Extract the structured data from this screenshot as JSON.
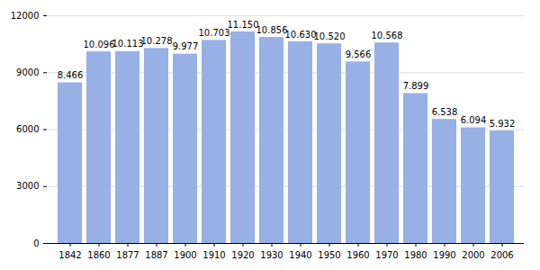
{
  "chart_data": {
    "type": "bar",
    "categories": [
      "1842",
      "1860",
      "1877",
      "1887",
      "1900",
      "1910",
      "1920",
      "1930",
      "1940",
      "1950",
      "1960",
      "1970",
      "1980",
      "1990",
      "2000",
      "2006"
    ],
    "values": [
      8466,
      10096,
      10113,
      10278,
      9977,
      10703,
      11150,
      10856,
      10630,
      10520,
      9566,
      10568,
      7899,
      6538,
      6094,
      5932
    ],
    "value_labels": [
      "8.466",
      "10.096",
      "10.113",
      "10.278",
      "9.977",
      "10.703",
      "11.150",
      "10.856",
      "10.630",
      "10.520",
      "9.566",
      "10.568",
      "7.899",
      "6.538",
      "6.094",
      "5.932"
    ],
    "color": "#97b0e6",
    "ylim": [
      0,
      12000
    ],
    "yticks": [
      0,
      3000,
      6000,
      9000,
      12000
    ],
    "grid": true,
    "data_labels": true
  }
}
